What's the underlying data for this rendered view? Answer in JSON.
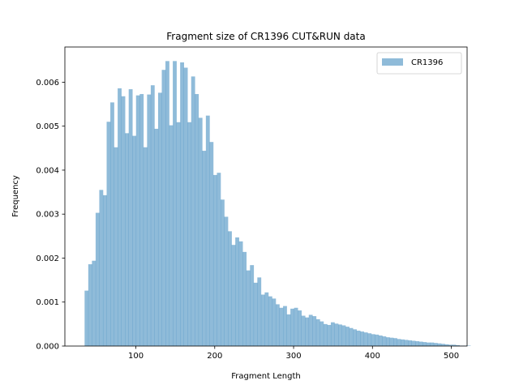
{
  "chart_data": {
    "type": "bar",
    "title": "Fragment size of CR1396 CUT&RUN data",
    "xlabel": "Fragment Length",
    "ylabel": "Frequency",
    "xlim": [
      10,
      520
    ],
    "ylim": [
      0,
      0.0068
    ],
    "xticks": [
      100,
      200,
      300,
      400,
      500
    ],
    "xtick_labels": [
      "100",
      "200",
      "300",
      "400",
      "500"
    ],
    "yticks": [
      0,
      0.001,
      0.002,
      0.003,
      0.004,
      0.005,
      0.006
    ],
    "ytick_labels": [
      "0.000",
      "0.001",
      "0.002",
      "0.003",
      "0.004",
      "0.005",
      "0.006"
    ],
    "legend_position": "top-right",
    "bin_start": 35,
    "bin_width": 4.66,
    "series": [
      {
        "name": "CR1396",
        "color": "#1f77b4",
        "alpha": 0.5,
        "values": [
          0.00126,
          0.00186,
          0.00194,
          0.00303,
          0.00355,
          0.00343,
          0.0051,
          0.00554,
          0.00452,
          0.00586,
          0.00568,
          0.00484,
          0.00584,
          0.00478,
          0.0057,
          0.00573,
          0.00452,
          0.00572,
          0.00593,
          0.00494,
          0.00576,
          0.00628,
          0.00648,
          0.00502,
          0.00648,
          0.00509,
          0.00645,
          0.00633,
          0.00509,
          0.00613,
          0.00573,
          0.00519,
          0.00444,
          0.00524,
          0.00464,
          0.00389,
          0.00394,
          0.00333,
          0.00294,
          0.00261,
          0.0023,
          0.00247,
          0.00238,
          0.00214,
          0.00172,
          0.00184,
          0.00144,
          0.00156,
          0.00117,
          0.00122,
          0.00113,
          0.00108,
          0.00095,
          0.00087,
          0.00091,
          0.00072,
          0.00085,
          0.00087,
          0.00081,
          0.00069,
          0.00065,
          0.00071,
          0.00068,
          0.00061,
          0.00056,
          0.0005,
          0.00048,
          0.00054,
          0.00051,
          0.00049,
          0.00047,
          0.00044,
          0.00041,
          0.00038,
          0.00035,
          0.00033,
          0.00031,
          0.00029,
          0.00027,
          0.00026,
          0.00024,
          0.00022,
          0.0002,
          0.00019,
          0.00018,
          0.00016,
          0.00015,
          0.00014,
          0.00013,
          0.00012,
          0.00011,
          0.0001,
          9e-05,
          8e-05,
          8e-05,
          7e-05,
          6e-05,
          5e-05,
          4e-05,
          3e-05,
          3e-05,
          2e-05,
          1e-05,
          1e-05,
          1e-05
        ]
      }
    ]
  }
}
